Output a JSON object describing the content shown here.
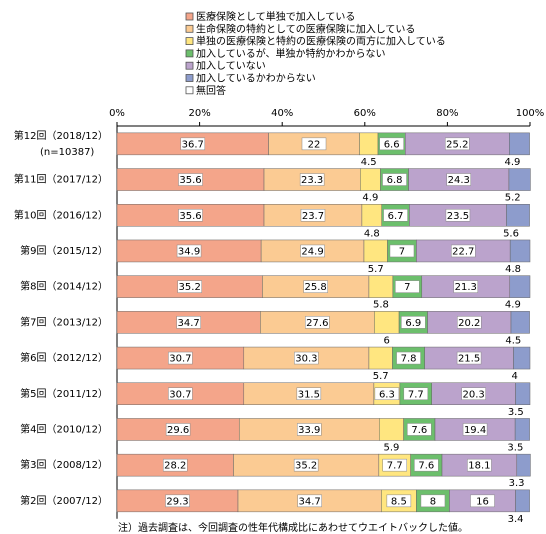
{
  "chart_data": {
    "type": "stacked-bar-horizontal",
    "categories": [
      "第12回（2018/12）",
      "第11回（2017/12）",
      "第10回（2016/12）",
      "第9回（2015/12）",
      "第8回（2014/12）",
      "第7回（2013/12）",
      "第6回（2012/12）",
      "第5回（2011/12）",
      "第4回（2010/12）",
      "第3回（2008/12）",
      "第2回（2007/12）"
    ],
    "category_note": "(n=10387)",
    "series": [
      {
        "name": "医療保険として単独で加入している",
        "color": "#f4a58a",
        "values": [
          36.7,
          35.6,
          35.6,
          34.9,
          35.2,
          34.7,
          30.7,
          30.7,
          29.6,
          28.2,
          29.3
        ]
      },
      {
        "name": "生命保険の特約としての医療保険に加入している",
        "color": "#fbcb93",
        "values": [
          22.0,
          23.3,
          23.7,
          24.9,
          25.8,
          27.6,
          30.3,
          31.5,
          33.9,
          35.2,
          34.7
        ]
      },
      {
        "name": "単独の医療保険と特約の医療保険の両方に加入している",
        "color": "#ffe680",
        "values": [
          4.5,
          4.9,
          4.8,
          5.7,
          5.8,
          6.0,
          5.7,
          6.3,
          5.9,
          7.7,
          8.5
        ]
      },
      {
        "name": "加入しているが、単独か特約かわからない",
        "color": "#6cbf6c",
        "values": [
          6.6,
          6.8,
          6.7,
          7.0,
          7.0,
          6.9,
          7.8,
          7.7,
          7.6,
          7.6,
          8.0
        ]
      },
      {
        "name": "加入していない",
        "color": "#bba3cc",
        "values": [
          25.2,
          24.3,
          23.5,
          22.7,
          21.3,
          20.2,
          21.5,
          20.3,
          19.4,
          18.1,
          16.0
        ]
      },
      {
        "name": "加入しているかわからない",
        "color": "#8d9ccc",
        "values": [
          4.9,
          5.2,
          5.6,
          4.8,
          4.9,
          4.5,
          4.0,
          3.5,
          3.5,
          3.3,
          3.4
        ]
      },
      {
        "name": "無回答",
        "color": "#ffffff",
        "values": [
          null,
          null,
          null,
          null,
          null,
          null,
          null,
          null,
          null,
          null,
          null
        ]
      }
    ],
    "xlim": [
      0,
      100
    ],
    "xticks": [
      {
        "value": 0,
        "label": "0%"
      },
      {
        "value": 20,
        "label": "20%"
      },
      {
        "value": 40,
        "label": "40%"
      },
      {
        "value": 60,
        "label": "60%"
      },
      {
        "value": 80,
        "label": "80%"
      },
      {
        "value": 100,
        "label": "100%"
      }
    ],
    "footnote": "注）過去調査は、今回調査の性年代構成比にあわせてウエイトバックした値。"
  }
}
